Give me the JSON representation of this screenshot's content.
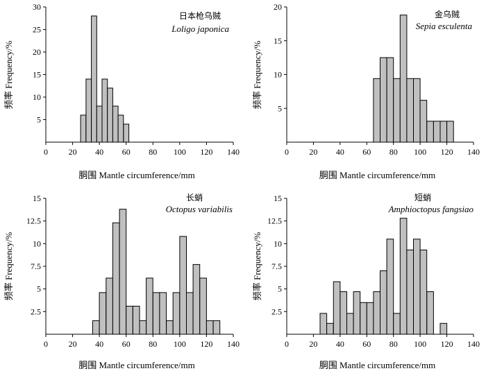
{
  "chart_data": [
    {
      "type": "bar",
      "panel": "top-left",
      "title_zh": "日本枪乌贼",
      "title_latin": "Loligo japonica",
      "xlabel": "胴围 Mantle circumference/mm",
      "ylabel": "频率 Frequency/%",
      "xlim": [
        0,
        140
      ],
      "ylim": [
        0,
        30
      ],
      "xticks": [
        0,
        20,
        40,
        60,
        80,
        100,
        120,
        140
      ],
      "yticks": [
        5,
        10,
        15,
        20,
        25,
        30
      ],
      "ytick_labels": [
        "5",
        "10",
        "15",
        "20",
        "25",
        "30"
      ],
      "bin_width": 4,
      "bin_starts": [
        26,
        30,
        34,
        38,
        42,
        46,
        50,
        54,
        58,
        62,
        66
      ],
      "values": [
        6,
        14,
        28,
        8,
        14,
        12,
        8,
        6,
        4,
        0,
        0
      ]
    },
    {
      "type": "bar",
      "panel": "top-right",
      "title_zh": "金乌贼",
      "title_latin": "Sepia esculenta",
      "xlabel": "胴围 Mantle circumference/mm",
      "ylabel": "频率 Frequency/%",
      "xlim": [
        0,
        140
      ],
      "ylim": [
        0,
        20
      ],
      "xticks": [
        0,
        20,
        40,
        60,
        80,
        100,
        120,
        140
      ],
      "yticks": [
        5,
        10,
        15,
        20
      ],
      "ytick_labels": [
        "5",
        "10",
        "15",
        "20"
      ],
      "bin_width": 5,
      "bin_starts": [
        65,
        70,
        75,
        80,
        85,
        90,
        95,
        100,
        105,
        110,
        115,
        120
      ],
      "values": [
        9.4,
        12.5,
        12.5,
        9.4,
        18.8,
        9.4,
        9.4,
        6.2,
        3.1,
        3.1,
        3.1,
        3.1
      ]
    },
    {
      "type": "bar",
      "panel": "bottom-left",
      "title_zh": "长蛸",
      "title_latin": "Octopus variabilis",
      "xlabel": "胴围 Mantle circumference/mm",
      "ylabel": "频率 Frequency/%",
      "xlim": [
        0,
        140
      ],
      "ylim": [
        0,
        15
      ],
      "xticks": [
        0,
        20,
        40,
        60,
        80,
        100,
        120,
        140
      ],
      "yticks": [
        2.5,
        5,
        7.5,
        10,
        12.5,
        15
      ],
      "ytick_labels": [
        "2.5",
        "5",
        "7.5",
        "10",
        "12.5",
        "15"
      ],
      "bin_width": 5,
      "bin_starts": [
        35,
        40,
        45,
        50,
        55,
        60,
        65,
        70,
        75,
        80,
        85,
        90,
        95,
        100,
        105,
        110,
        115,
        120,
        125
      ],
      "values": [
        1.5,
        4.6,
        6.2,
        12.3,
        13.8,
        3.1,
        3.1,
        1.5,
        6.2,
        4.6,
        4.6,
        1.5,
        4.6,
        10.8,
        4.6,
        7.7,
        6.2,
        1.5,
        1.5
      ]
    },
    {
      "type": "bar",
      "panel": "bottom-right",
      "title_zh": "短蛸",
      "title_latin": "Amphioctopus fangsiao",
      "xlabel": "胴围 Mantle circumference/mm",
      "ylabel": "频率 Frequency/%",
      "xlim": [
        0,
        140
      ],
      "ylim": [
        0,
        15
      ],
      "xticks": [
        0,
        20,
        40,
        60,
        80,
        100,
        120,
        140
      ],
      "yticks": [
        2.5,
        5,
        7.5,
        10,
        12.5,
        15
      ],
      "ytick_labels": [
        "2.5",
        "5",
        "7.5",
        "10",
        "12.5",
        "15"
      ],
      "bin_width": 5,
      "bin_starts": [
        25,
        30,
        35,
        40,
        45,
        50,
        55,
        60,
        65,
        70,
        75,
        80,
        85,
        90,
        95,
        100,
        105,
        110,
        115
      ],
      "values": [
        2.3,
        1.2,
        5.8,
        4.7,
        2.3,
        4.7,
        3.5,
        3.5,
        4.7,
        7.0,
        10.5,
        2.3,
        12.8,
        9.3,
        10.5,
        9.3,
        4.7,
        0,
        1.2
      ]
    }
  ]
}
